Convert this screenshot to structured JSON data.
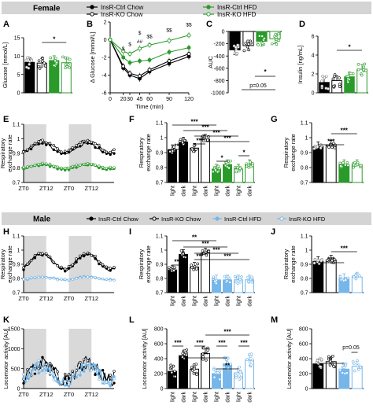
{
  "colors": {
    "ctrl_chow": "#000000",
    "ko_chow": "#000000",
    "ctrl_hfd_female": "#2a9a2a",
    "ko_hfd_female": "#2a9a2a",
    "ctrl_hfd_male": "#76b6e8",
    "ko_hfd_male": "#76b6e8",
    "dark_shade": "#d9d9d9",
    "sex_bar": "#d4d4d4"
  },
  "sections": {
    "female": {
      "title": "Female",
      "legend": [
        "InsR-Ctrl Chow",
        "InsR-KO Chow",
        "InsR-Ctrl HFD",
        "InsR-KO HFD"
      ]
    },
    "male": {
      "title": "Male",
      "legend": [
        "InsR-Ctrl Chow",
        "InsR-KO Chow",
        "InsR-Ctrl HFD",
        "InsR-KO HFD"
      ]
    }
  },
  "chart_data": [
    {
      "panel": "A",
      "type": "bar",
      "ylabel": "Glucose [mmol/L]",
      "ylim": [
        0,
        15
      ],
      "yticks": [
        0,
        5,
        10,
        15
      ],
      "values": [
        8.3,
        8.1,
        8.8,
        8.2
      ],
      "annotations": [
        "*"
      ]
    },
    {
      "panel": "B",
      "type": "line",
      "xlabel": "Time (min)",
      "ylabel": "Δ Glucose [mmol/L]",
      "x": [
        0,
        20,
        30,
        45,
        60,
        90,
        120
      ],
      "xticks": [
        "0",
        "20",
        "30",
        "45",
        "60",
        "90",
        "120"
      ],
      "ylim": [
        -6,
        2
      ],
      "yticks": [
        -6,
        -4,
        -2,
        0,
        2
      ],
      "series": [
        {
          "values": [
            0,
            -3.2,
            -4.0,
            -4.4,
            -3.6,
            -2.7,
            -1.9
          ]
        },
        {
          "values": [
            0,
            -3.0,
            -3.8,
            -4.1,
            -3.4,
            -2.4,
            -1.6
          ]
        },
        {
          "values": [
            0,
            -2.0,
            -2.6,
            -2.4,
            -2.3,
            -1.4,
            -0.9
          ]
        },
        {
          "values": [
            0,
            -1.3,
            -1.6,
            -1.0,
            -0.6,
            -0.1,
            0.5
          ]
        }
      ],
      "annotations": [
        "$",
        "$",
        "##",
        "$",
        "$$",
        "$$",
        "$$"
      ]
    },
    {
      "panel": "C",
      "type": "bar",
      "ylabel": "AUC",
      "ylim": [
        -1000,
        0
      ],
      "yticks": [
        -1000,
        -800,
        -600,
        -400,
        -200,
        0
      ],
      "values": [
        -300,
        -230,
        -160,
        -120
      ],
      "annotations": [
        "*",
        "p=0.05"
      ]
    },
    {
      "panel": "D",
      "type": "bar",
      "ylabel": "Insulin [ng/mL]",
      "ylim": [
        0,
        6
      ],
      "yticks": [
        0,
        2,
        4,
        6
      ],
      "values": [
        1.1,
        1.3,
        1.7,
        2.5
      ],
      "annotations": [
        "*"
      ]
    },
    {
      "panel": "E",
      "type": "line",
      "ylabel": "Respiratory exchange rate",
      "ylim": [
        0.7,
        1.1
      ],
      "yticks": [
        0.7,
        0.8,
        0.9,
        1.0,
        1.1
      ],
      "xticks": [
        "ZT0",
        "ZT12",
        "ZT0",
        "ZT12"
      ]
    },
    {
      "panel": "F",
      "type": "bar",
      "ylabel": "Respiratory exchange rate",
      "ylim": [
        0.7,
        1.1
      ],
      "yticks": [
        0.7,
        0.8,
        0.9,
        1.0,
        1.1
      ],
      "categories": [
        "light",
        "dark",
        "light",
        "dark",
        "light",
        "dark",
        "light",
        "dark"
      ],
      "values": [
        0.92,
        0.97,
        0.93,
        0.99,
        0.79,
        0.82,
        0.79,
        0.82
      ],
      "annotations": [
        "***",
        "***",
        "***",
        "***",
        "***",
        "***",
        "*",
        "*"
      ]
    },
    {
      "panel": "G",
      "type": "bar",
      "ylabel": "Respiratory exchange rate",
      "ylim": [
        0.7,
        1.1
      ],
      "yticks": [
        0.7,
        0.8,
        0.9,
        1.0,
        1.1
      ],
      "values": [
        0.94,
        0.95,
        0.82,
        0.82
      ],
      "annotations": [
        "***",
        "***"
      ]
    },
    {
      "panel": "H",
      "type": "line",
      "ylabel": "Respiratory exchange rate",
      "ylim": [
        0.7,
        1.1
      ],
      "yticks": [
        0.7,
        0.8,
        0.9,
        1.0,
        1.1
      ],
      "xticks": [
        "ZT0",
        "ZT12",
        "ZT0",
        "ZT12"
      ]
    },
    {
      "panel": "I",
      "type": "bar",
      "ylabel": "Respiratory exchange rate",
      "ylim": [
        0.7,
        1.1
      ],
      "yticks": [
        0.7,
        0.8,
        0.9,
        1.0,
        1.1
      ],
      "categories": [
        "light",
        "dark",
        "light",
        "dark",
        "light",
        "dark",
        "light",
        "dark"
      ],
      "values": [
        0.86,
        0.97,
        0.88,
        0.98,
        0.79,
        0.79,
        0.79,
        0.79
      ],
      "annotations": [
        "**",
        "***",
        "***",
        "***",
        "***",
        "***"
      ]
    },
    {
      "panel": "J",
      "type": "bar",
      "ylabel": "Respiratory exchange rate",
      "ylim": [
        0.7,
        1.1
      ],
      "yticks": [
        0.7,
        0.8,
        0.9,
        1.0,
        1.1
      ],
      "values": [
        0.92,
        0.93,
        0.8,
        0.81
      ],
      "annotations": [
        "***",
        "***"
      ]
    },
    {
      "panel": "K",
      "type": "line",
      "ylabel": "Locomotor activity [AU]",
      "ylim": [
        0,
        1500
      ],
      "yticks": [
        0,
        500,
        1000,
        1500
      ],
      "xticks": [
        "ZT0",
        "ZT12",
        "ZT0",
        "ZT12"
      ]
    },
    {
      "panel": "L",
      "type": "bar",
      "ylabel": "Locomotor activity [AU]",
      "ylim": [
        0,
        800
      ],
      "yticks": [
        0,
        200,
        400,
        600,
        800
      ],
      "categories": [
        "light",
        "dark",
        "light",
        "dark",
        "light",
        "dark",
        "light",
        "dark"
      ],
      "values": [
        230,
        440,
        260,
        470,
        200,
        330,
        210,
        380
      ],
      "annotations": [
        "***",
        "***",
        "***",
        "**",
        "***",
        "***",
        "**"
      ]
    },
    {
      "panel": "M",
      "type": "bar",
      "ylabel": "Locomotor activity [AU]",
      "ylim": [
        0,
        800
      ],
      "yticks": [
        0,
        200,
        400,
        600,
        800
      ],
      "values": [
        330,
        360,
        260,
        300
      ],
      "annotations": [
        "*",
        "p=0.05"
      ]
    }
  ]
}
